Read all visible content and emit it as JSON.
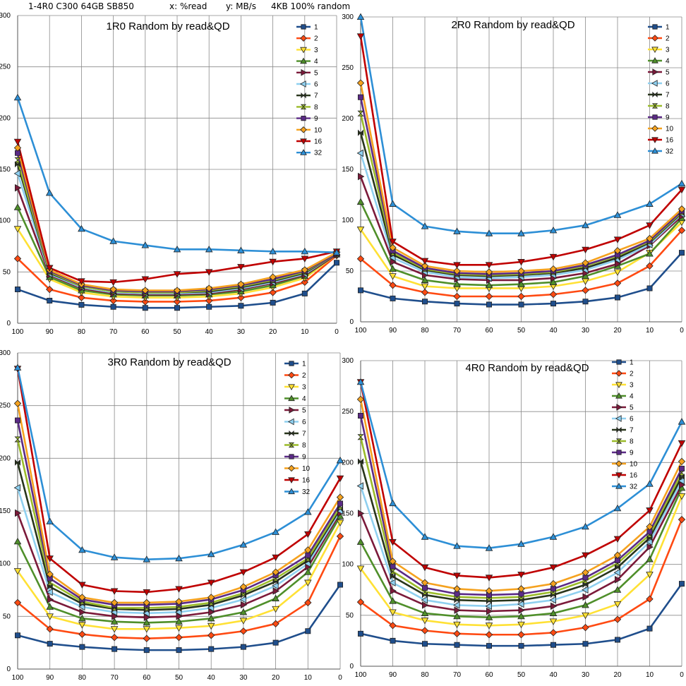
{
  "header": {
    "title": "1-4R0 C300 64GB SB850",
    "x_note": "x: %read",
    "y_note": "y: MB/s",
    "workload": "4KB 100% random"
  },
  "chart_data": [
    {
      "type": "line",
      "title": "1R0 Random by read&QD",
      "x": [
        100,
        90,
        80,
        70,
        60,
        50,
        40,
        30,
        20,
        10,
        0
      ],
      "ylim": [
        0,
        300
      ],
      "yticks": [
        0,
        50,
        100,
        150,
        200,
        250,
        300
      ],
      "grid": true,
      "legend": "top-right",
      "series": [
        {
          "name": "1",
          "color": "#1f4e8c",
          "marker": "square",
          "values": [
            33,
            22,
            18,
            16,
            15,
            15,
            16,
            17,
            20,
            29,
            59
          ]
        },
        {
          "name": "2",
          "color": "#ff4a12",
          "marker": "diamond",
          "values": [
            63,
            33,
            25,
            22,
            21,
            21,
            22,
            25,
            30,
            40,
            66
          ]
        },
        {
          "name": "3",
          "color": "#ffe135",
          "marker": "tri-down",
          "values": [
            92,
            43,
            30,
            26,
            25,
            25,
            26,
            29,
            35,
            44,
            67
          ]
        },
        {
          "name": "4",
          "color": "#4f8f2a",
          "marker": "tri-up",
          "values": [
            113,
            45,
            32,
            28,
            27,
            27,
            28,
            31,
            37,
            46,
            67
          ]
        },
        {
          "name": "5",
          "color": "#7b1a3a",
          "marker": "tri-right",
          "values": [
            132,
            47,
            34,
            29,
            28,
            28,
            29,
            33,
            39,
            47,
            67
          ]
        },
        {
          "name": "6",
          "color": "#8fd0f0",
          "marker": "tri-left",
          "values": [
            146,
            48,
            35,
            30,
            29,
            29,
            30,
            34,
            40,
            48,
            68
          ]
        },
        {
          "name": "7",
          "color": "#28351b",
          "marker": "bowtie",
          "values": [
            155,
            49,
            36,
            31,
            30,
            30,
            31,
            35,
            41,
            49,
            68
          ]
        },
        {
          "name": "8",
          "color": "#9bbb2a",
          "marker": "hourglass",
          "values": [
            159,
            50,
            36,
            31,
            30,
            30,
            32,
            36,
            42,
            50,
            68
          ]
        },
        {
          "name": "9",
          "color": "#5b2a86",
          "marker": "square",
          "values": [
            166,
            51,
            37,
            32,
            31,
            31,
            33,
            37,
            43,
            51,
            68
          ]
        },
        {
          "name": "10",
          "color": "#f5a21f",
          "marker": "diamond",
          "values": [
            171,
            52,
            38,
            33,
            32,
            32,
            34,
            38,
            45,
            52,
            69
          ]
        },
        {
          "name": "16",
          "color": "#c00000",
          "marker": "tri-down",
          "values": [
            177,
            54,
            41,
            40,
            43,
            48,
            50,
            55,
            60,
            63,
            70
          ]
        },
        {
          "name": "32",
          "color": "#2d8fd6",
          "marker": "tri-up",
          "values": [
            220,
            127,
            92,
            80,
            76,
            72,
            72,
            71,
            70,
            70,
            69
          ]
        }
      ]
    },
    {
      "type": "line",
      "title": "2R0 Random by read&QD",
      "x": [
        100,
        90,
        80,
        70,
        60,
        50,
        40,
        30,
        20,
        10,
        0
      ],
      "ylim": [
        0,
        300
      ],
      "yticks": [
        0,
        50,
        100,
        150,
        200,
        250,
        300
      ],
      "grid": true,
      "legend": "top-right",
      "series": [
        {
          "name": "1",
          "color": "#1f4e8c",
          "marker": "square",
          "values": [
            31,
            23,
            20,
            18,
            17,
            17,
            18,
            20,
            24,
            33,
            68
          ]
        },
        {
          "name": "2",
          "color": "#ff4a12",
          "marker": "diamond",
          "values": [
            62,
            36,
            29,
            25,
            25,
            25,
            27,
            31,
            38,
            55,
            90
          ]
        },
        {
          "name": "3",
          "color": "#ffe135",
          "marker": "tri-down",
          "values": [
            91,
            45,
            35,
            33,
            33,
            33,
            35,
            40,
            49,
            68,
            98
          ]
        },
        {
          "name": "4",
          "color": "#4f8f2a",
          "marker": "tri-up",
          "values": [
            118,
            52,
            41,
            37,
            36,
            37,
            39,
            45,
            55,
            67,
            102
          ]
        },
        {
          "name": "5",
          "color": "#7b1a3a",
          "marker": "tri-right",
          "values": [
            143,
            59,
            46,
            42,
            41,
            41,
            43,
            48,
            57,
            75,
            104
          ]
        },
        {
          "name": "6",
          "color": "#8fd0f0",
          "marker": "tri-left",
          "values": [
            166,
            63,
            49,
            44,
            43,
            44,
            46,
            51,
            61,
            76,
            106
          ]
        },
        {
          "name": "7",
          "color": "#28351b",
          "marker": "bowtie",
          "values": [
            186,
            66,
            51,
            46,
            45,
            46,
            48,
            53,
            63,
            78,
            107
          ]
        },
        {
          "name": "8",
          "color": "#9bbb2a",
          "marker": "hourglass",
          "values": [
            205,
            68,
            52,
            47,
            46,
            47,
            49,
            55,
            65,
            79,
            108
          ]
        },
        {
          "name": "9",
          "color": "#5b2a86",
          "marker": "square",
          "values": [
            221,
            70,
            53,
            48,
            47,
            48,
            50,
            56,
            66,
            80,
            109
          ]
        },
        {
          "name": "10",
          "color": "#f5a21f",
          "marker": "diamond",
          "values": [
            235,
            73,
            55,
            50,
            49,
            50,
            52,
            58,
            70,
            82,
            111
          ]
        },
        {
          "name": "16",
          "color": "#c00000",
          "marker": "tri-down",
          "values": [
            281,
            79,
            60,
            56,
            56,
            59,
            64,
            71,
            81,
            95,
            130
          ]
        },
        {
          "name": "32",
          "color": "#2d8fd6",
          "marker": "tri-up",
          "values": [
            300,
            116,
            94,
            89,
            87,
            87,
            90,
            95,
            105,
            116,
            136
          ]
        }
      ]
    },
    {
      "type": "line",
      "title": "3R0 Random by read&QD",
      "x": [
        100,
        90,
        80,
        70,
        60,
        50,
        40,
        30,
        20,
        10,
        0
      ],
      "ylim": [
        0,
        300
      ],
      "yticks": [
        0,
        50,
        100,
        150,
        200,
        250,
        300
      ],
      "grid": true,
      "legend": "top-right",
      "series": [
        {
          "name": "1",
          "color": "#1f4e8c",
          "marker": "square",
          "values": [
            32,
            24,
            21,
            19,
            18,
            18,
            19,
            21,
            25,
            36,
            80
          ]
        },
        {
          "name": "2",
          "color": "#ff4a12",
          "marker": "diamond",
          "values": [
            63,
            38,
            33,
            30,
            29,
            30,
            32,
            36,
            43,
            63,
            126
          ]
        },
        {
          "name": "3",
          "color": "#ffe135",
          "marker": "tri-down",
          "values": [
            93,
            50,
            42,
            38,
            38,
            39,
            41,
            46,
            57,
            82,
            139
          ]
        },
        {
          "name": "4",
          "color": "#4f8f2a",
          "marker": "tri-up",
          "values": [
            121,
            59,
            48,
            45,
            44,
            45,
            48,
            54,
            67,
            92,
            145
          ]
        },
        {
          "name": "5",
          "color": "#7b1a3a",
          "marker": "tri-right",
          "values": [
            148,
            66,
            54,
            50,
            49,
            50,
            54,
            61,
            74,
            97,
            148
          ]
        },
        {
          "name": "6",
          "color": "#8fd0f0",
          "marker": "tri-left",
          "values": [
            172,
            73,
            59,
            54,
            53,
            54,
            58,
            66,
            79,
            100,
            150
          ]
        },
        {
          "name": "7",
          "color": "#28351b",
          "marker": "bowtie",
          "values": [
            196,
            78,
            62,
            57,
            56,
            57,
            61,
            70,
            83,
            103,
            152
          ]
        },
        {
          "name": "8",
          "color": "#9bbb2a",
          "marker": "hourglass",
          "values": [
            218,
            82,
            64,
            58,
            58,
            59,
            63,
            72,
            86,
            105,
            154
          ]
        },
        {
          "name": "9",
          "color": "#5b2a86",
          "marker": "square",
          "values": [
            236,
            86,
            66,
            61,
            61,
            62,
            66,
            75,
            89,
            108,
            157
          ]
        },
        {
          "name": "10",
          "color": "#f5a21f",
          "marker": "diamond",
          "values": [
            252,
            90,
            68,
            63,
            63,
            64,
            68,
            78,
            92,
            113,
            163
          ]
        },
        {
          "name": "16",
          "color": "#c00000",
          "marker": "tri-down",
          "values": [
            285,
            105,
            80,
            74,
            73,
            76,
            82,
            92,
            106,
            128,
            181
          ]
        },
        {
          "name": "32",
          "color": "#2d8fd6",
          "marker": "tri-up",
          "values": [
            286,
            140,
            113,
            106,
            104,
            105,
            109,
            118,
            130,
            149,
            198
          ]
        }
      ]
    },
    {
      "type": "line",
      "title": "4R0 Random by read&QD",
      "x": [
        100,
        90,
        80,
        70,
        60,
        50,
        40,
        30,
        20,
        10,
        0
      ],
      "ylim": [
        0,
        300
      ],
      "yticks": [
        0,
        50,
        100,
        150,
        200,
        250,
        300
      ],
      "grid": true,
      "legend": "top-right",
      "series": [
        {
          "name": "1",
          "color": "#1f4e8c",
          "marker": "square",
          "values": [
            32,
            25,
            22,
            21,
            20,
            20,
            21,
            22,
            26,
            37,
            81
          ]
        },
        {
          "name": "2",
          "color": "#ff4a12",
          "marker": "diamond",
          "values": [
            63,
            40,
            35,
            32,
            31,
            31,
            33,
            38,
            46,
            66,
            144
          ]
        },
        {
          "name": "3",
          "color": "#ffe135",
          "marker": "tri-down",
          "values": [
            96,
            53,
            45,
            41,
            40,
            41,
            44,
            50,
            61,
            90,
            167
          ]
        },
        {
          "name": "4",
          "color": "#4f8f2a",
          "marker": "tri-up",
          "values": [
            122,
            64,
            52,
            49,
            48,
            49,
            52,
            60,
            75,
            105,
            175
          ]
        },
        {
          "name": "5",
          "color": "#7b1a3a",
          "marker": "tri-right",
          "values": [
            150,
            74,
            60,
            55,
            54,
            55,
            59,
            68,
            85,
            117,
            178
          ]
        },
        {
          "name": "6",
          "color": "#8fd0f0",
          "marker": "tri-left",
          "values": [
            177,
            82,
            65,
            60,
            59,
            61,
            65,
            75,
            92,
            122,
            182
          ]
        },
        {
          "name": "7",
          "color": "#28351b",
          "marker": "bowtie",
          "values": [
            201,
            88,
            70,
            65,
            64,
            65,
            70,
            80,
            97,
            126,
            186
          ]
        },
        {
          "name": "8",
          "color": "#9bbb2a",
          "marker": "hourglass",
          "values": [
            225,
            93,
            73,
            68,
            67,
            68,
            73,
            84,
            101,
            129,
            190
          ]
        },
        {
          "name": "9",
          "color": "#5b2a86",
          "marker": "square",
          "values": [
            246,
            98,
            77,
            71,
            70,
            71,
            76,
            87,
            104,
            132,
            194
          ]
        },
        {
          "name": "10",
          "color": "#f5a21f",
          "marker": "diamond",
          "values": [
            262,
            103,
            82,
            76,
            74,
            76,
            81,
            92,
            109,
            137,
            201
          ]
        },
        {
          "name": "16",
          "color": "#c00000",
          "marker": "tri-down",
          "values": [
            279,
            122,
            97,
            89,
            87,
            90,
            97,
            109,
            125,
            153,
            219
          ]
        },
        {
          "name": "32",
          "color": "#2d8fd6",
          "marker": "tri-up",
          "values": [
            279,
            160,
            127,
            118,
            116,
            120,
            127,
            137,
            155,
            179,
            240
          ]
        }
      ]
    }
  ]
}
